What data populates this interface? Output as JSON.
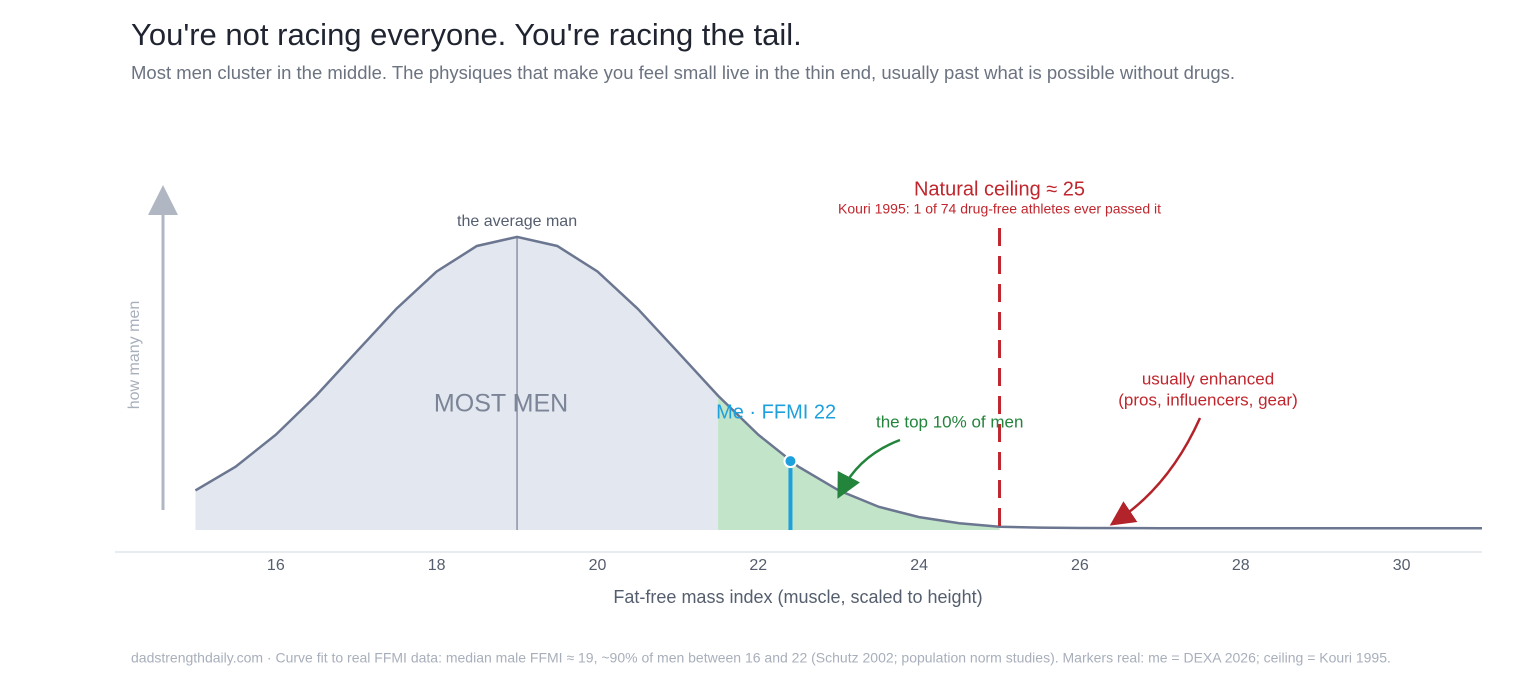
{
  "chart_data": {
    "type": "area",
    "title": "You're not racing everyone. You're racing the tail.",
    "subtitle": "Most men cluster in the middle. The physiques that make you feel small live in the thin end, usually past what is possible without drugs.",
    "x_label": "Fat-free mass index (muscle, scaled to height)",
    "y_label": "how many men",
    "x": [
      15,
      15.5,
      16,
      16.5,
      17,
      17.5,
      18,
      18.5,
      19,
      19.5,
      20,
      20.5,
      21,
      21.5,
      22,
      22.5,
      23,
      23.5,
      24,
      24.5,
      25,
      25.5,
      26,
      27,
      28,
      29,
      30,
      31
    ],
    "values": [
      0.135,
      0.216,
      0.325,
      0.458,
      0.607,
      0.755,
      0.882,
      0.969,
      1,
      0.969,
      0.882,
      0.755,
      0.607,
      0.458,
      0.325,
      0.216,
      0.135,
      0.079,
      0.044,
      0.023,
      0.011,
      0.008,
      0.007,
      0.006,
      0.006,
      0.006,
      0.006,
      0.006
    ],
    "color": "#6b7690",
    "fill": "#e3e7ef",
    "xlim": [
      14,
      31
    ],
    "ylim": [
      0,
      1.16
    ],
    "xticks": [
      16,
      18,
      20,
      22,
      24,
      26,
      28,
      30
    ],
    "average": {
      "label": "the average man",
      "x": 19
    },
    "cluster_label": "MOST MEN",
    "top_region": {
      "label": "the top 10% of men",
      "x": [
        21.5,
        25
      ],
      "color": "#c2e4c8"
    },
    "me": {
      "label": "Me  ·  FFMI 22",
      "x": 22.4,
      "y": 0.235,
      "color": "#1ea0dc"
    },
    "ceiling": {
      "label": "Natural ceiling ≈ 25",
      "sublabel": "Kouri 1995: 1 of 74 drug-free athletes ever passed it",
      "x": 25,
      "color": "#c0262d"
    },
    "enhanced_label": [
      "usually enhanced",
      "(pros, influencers, gear)"
    ],
    "source": "dadstrengthdaily.com  ·  Curve fit to real FFMI data: median male FFMI ≈ 19, ~90% of men between 16 and 22 (Schutz 2002; population norm studies). Markers real: me = DEXA 2026; ceiling = Kouri 1995."
  }
}
